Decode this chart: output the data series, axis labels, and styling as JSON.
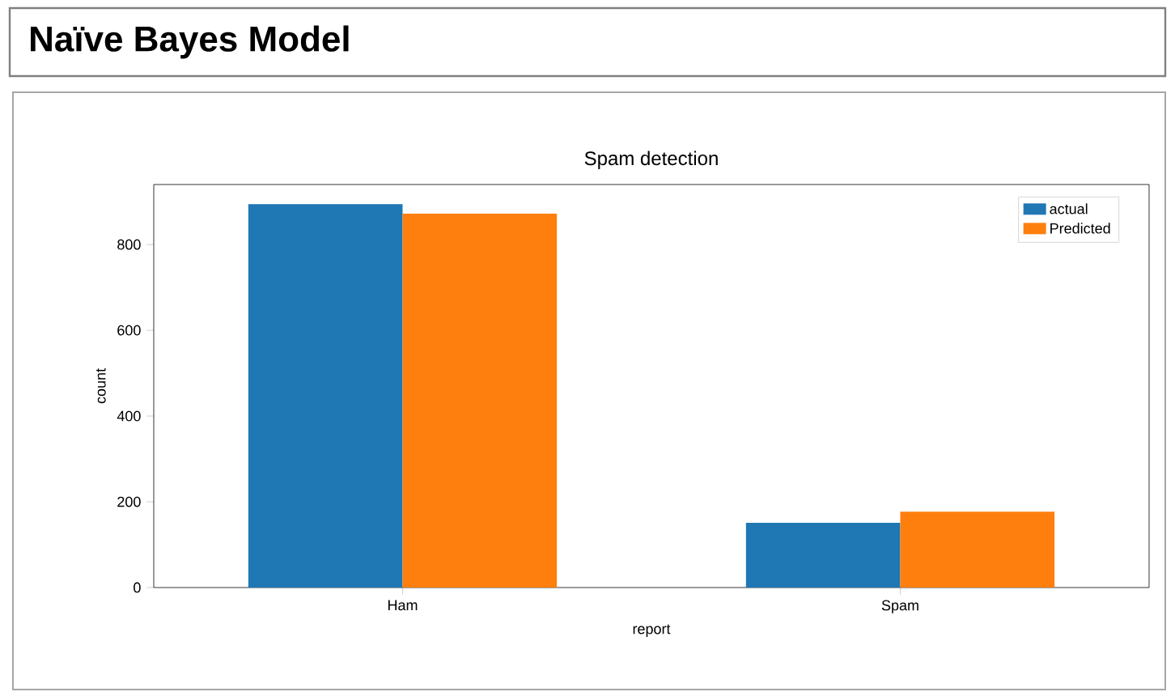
{
  "chart_data": {
    "type": "bar",
    "title": "Naïve Bayes Model",
    "subtitle": "Spam detection",
    "xlabel": "report",
    "ylabel": "count",
    "categories": [
      "Ham",
      "Spam"
    ],
    "series": [
      {
        "name": "actual",
        "color": "#1f77b4",
        "values": [
          894,
          151
        ]
      },
      {
        "name": "Predicted",
        "color": "#ff7f0e",
        "values": [
          872,
          177
        ]
      }
    ],
    "ylim": [
      0,
      940
    ],
    "yticks": [
      0,
      200,
      400,
      600,
      800
    ],
    "legend": "top right"
  }
}
